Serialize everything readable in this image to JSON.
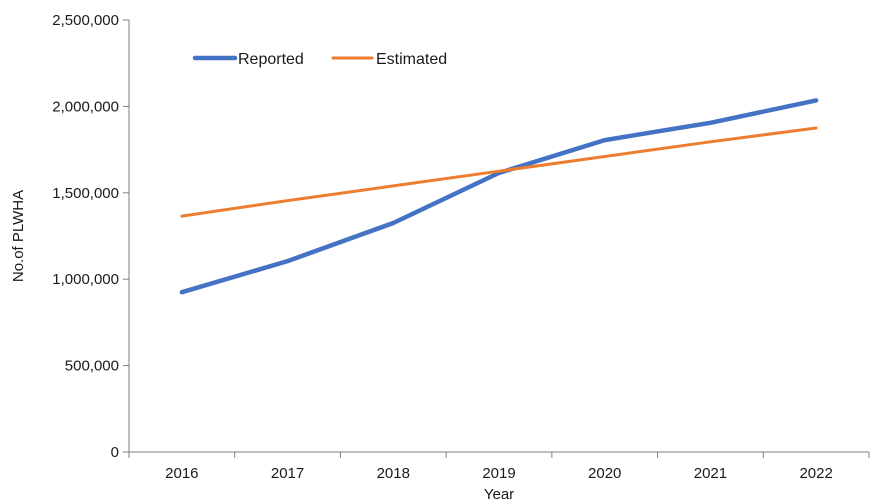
{
  "chart_data": {
    "type": "line",
    "title": "",
    "xlabel": "Year",
    "ylabel": "No.of PLWHA",
    "categories": [
      "2016",
      "2017",
      "2018",
      "2019",
      "2020",
      "2021",
      "2022"
    ],
    "series": [
      {
        "name": "Reported",
        "color": "#4472C4",
        "values": [
          925000,
          1105000,
          1325000,
          1615000,
          1805000,
          1905000,
          2035000
        ]
      },
      {
        "name": "Estimated",
        "color": "#ED7D31",
        "values": [
          1365000,
          1455000,
          1540000,
          1625000,
          1710000,
          1795000,
          1875000
        ]
      }
    ],
    "y_ticks": [
      "0",
      "500,000",
      "1,000,000",
      "1,500,000",
      "2,000,000",
      "2,500,000"
    ],
    "ylim": [
      0,
      2500000
    ],
    "grid": false,
    "legend_position": "top-left"
  }
}
